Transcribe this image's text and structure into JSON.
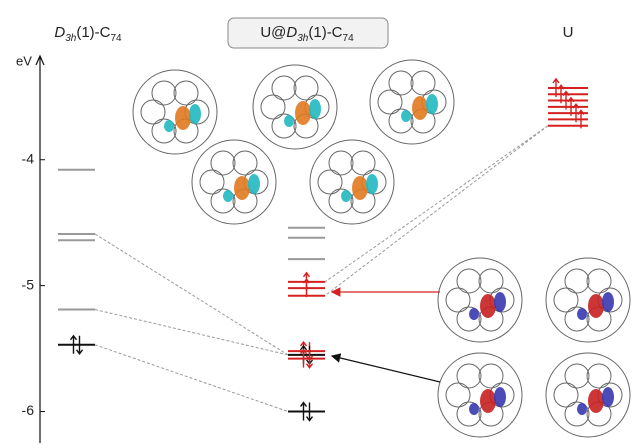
{
  "chart_data": {
    "type": "energy-levels",
    "y_label": "eV",
    "ylim": [
      -6.25,
      -3.2
    ],
    "yticks": [
      -4,
      -5,
      -6
    ],
    "columns": [
      {
        "label": [
          {
            "text": "D",
            "style": "italic"
          },
          {
            "text": "3h",
            "style": "sub-italic"
          },
          {
            "text": "(1)-C",
            "style": "normal"
          },
          {
            "text": "74",
            "style": "sub"
          }
        ],
        "levels": [
          {
            "value": -4.08,
            "color": "#999999",
            "electrons": 0
          },
          {
            "value": -4.59,
            "color": "#999999",
            "electrons": 0
          },
          {
            "value": -4.64,
            "color": "#999999",
            "electrons": 0
          },
          {
            "value": -5.19,
            "color": "#999999",
            "electrons": 0
          },
          {
            "value": -5.47,
            "color": "#111111",
            "electrons": 2
          }
        ]
      },
      {
        "label": [
          {
            "text": "U@",
            "style": "normal"
          },
          {
            "text": "D",
            "style": "italic"
          },
          {
            "text": "3h",
            "style": "sub-italic"
          },
          {
            "text": "(1)-C",
            "style": "normal"
          },
          {
            "text": "74",
            "style": "sub"
          }
        ],
        "boxed": true,
        "levels": [
          {
            "value": -4.54,
            "color": "#999999",
            "electrons": 0
          },
          {
            "value": -4.62,
            "color": "#999999",
            "electrons": 0
          },
          {
            "value": -4.79,
            "color": "#999999",
            "electrons": 0
          },
          {
            "value": -4.97,
            "color": "#d62020",
            "electrons": 1
          },
          {
            "value": -5.02,
            "color": "#d62020",
            "electrons": 1
          },
          {
            "value": -5.08,
            "color": "#d62020",
            "electrons": 0
          },
          {
            "value": -5.52,
            "color": "#d62020",
            "electrons": 2
          },
          {
            "value": -5.55,
            "color": "#111111",
            "electrons": 2
          },
          {
            "value": -5.58,
            "color": "#d62020",
            "electrons": 2
          },
          {
            "value": -6.0,
            "color": "#111111",
            "electrons": 2
          }
        ]
      },
      {
        "label": [
          {
            "text": "U",
            "style": "normal"
          }
        ],
        "levels": [
          {
            "value": -3.43,
            "color": "#d62020",
            "electrons": 1
          },
          {
            "value": -3.48,
            "color": "#d62020",
            "electrons": 1
          },
          {
            "value": -3.53,
            "color": "#d62020",
            "electrons": 1
          },
          {
            "value": -3.58,
            "color": "#d62020",
            "electrons": 1
          },
          {
            "value": -3.63,
            "color": "#d62020",
            "electrons": 1
          },
          {
            "value": -3.68,
            "color": "#d62020",
            "electrons": 1
          },
          {
            "value": -3.73,
            "color": "#d62020",
            "electrons": 0
          }
        ]
      }
    ],
    "connections": [
      [
        0,
        1,
        1,
        7
      ],
      [
        0,
        3,
        1,
        7
      ],
      [
        0,
        4,
        1,
        9
      ],
      [
        2,
        6,
        1,
        3
      ],
      [
        2,
        6,
        1,
        5
      ]
    ]
  }
}
